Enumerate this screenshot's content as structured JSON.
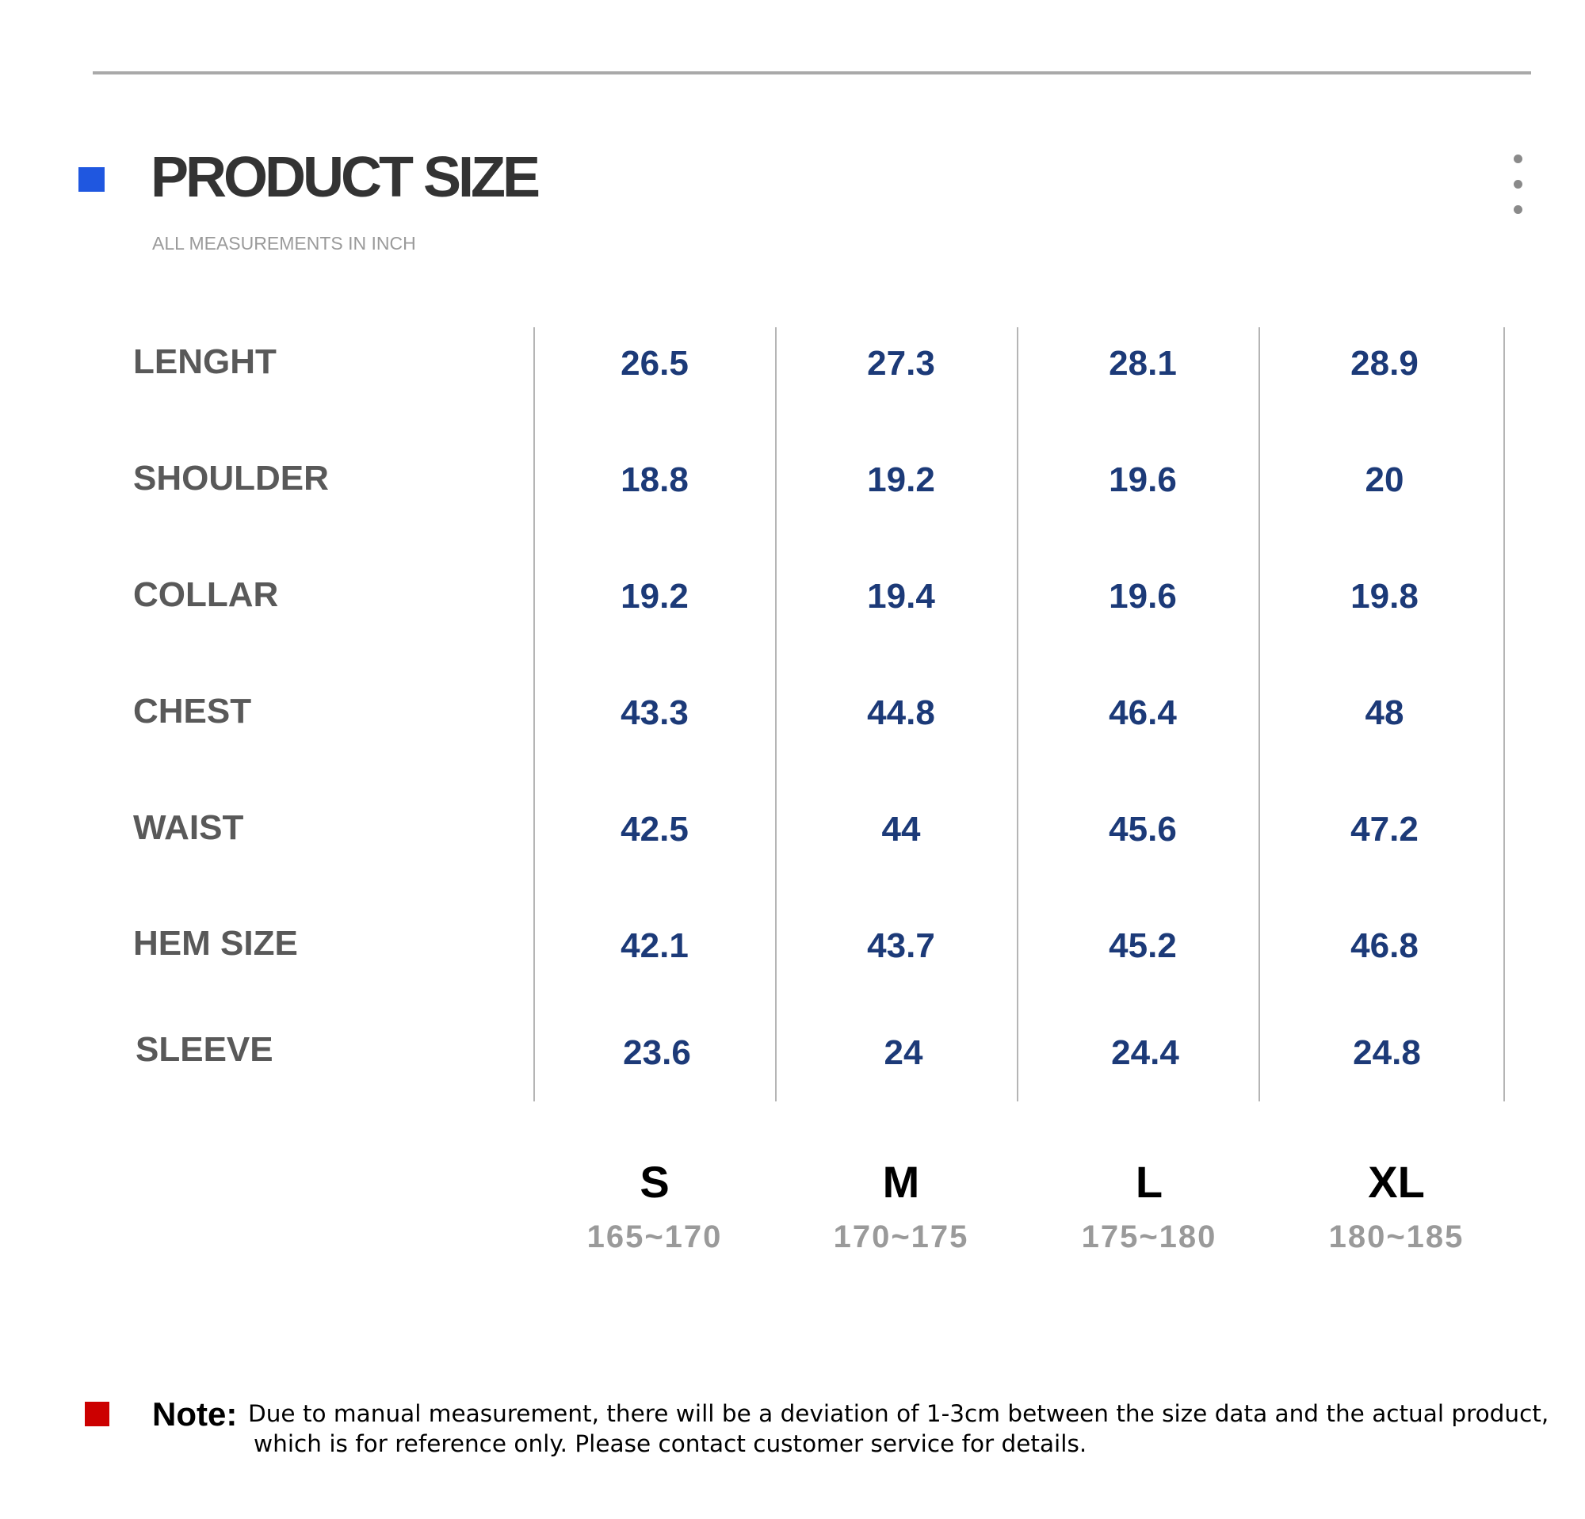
{
  "header": {
    "title": "PRODUCT SIZE",
    "subtitle": "ALL MEASUREMENTS IN INCH",
    "accent_color": "#1f57e0",
    "menu_icon": "kebab-menu-icon"
  },
  "table": {
    "rows": [
      {
        "label": "LENGHT",
        "values": [
          "26.5",
          "27.3",
          "28.1",
          "28.9"
        ]
      },
      {
        "label": "SHOULDER",
        "values": [
          "18.8",
          "19.2",
          "19.6",
          "20"
        ]
      },
      {
        "label": "COLLAR",
        "values": [
          "19.2",
          "19.4",
          "19.6",
          "19.8"
        ]
      },
      {
        "label": "CHEST",
        "values": [
          "43.3",
          "44.8",
          "46.4",
          "48"
        ]
      },
      {
        "label": "WAIST",
        "values": [
          "42.5",
          "44",
          "45.6",
          "47.2"
        ]
      },
      {
        "label": "HEM SIZE",
        "values": [
          "42.1",
          "43.7",
          "45.2",
          "46.8"
        ]
      },
      {
        "label": "SLEEVE",
        "values": [
          "23.6",
          "24",
          "24.4",
          "24.8"
        ]
      }
    ],
    "sizes": [
      {
        "name": "S",
        "range": "165~170"
      },
      {
        "name": "M",
        "range": "170~175"
      },
      {
        "name": "L",
        "range": "175~180"
      },
      {
        "name": "XL",
        "range": "180~185"
      }
    ],
    "value_color": "#1c3a78",
    "label_color": "#595959"
  },
  "note": {
    "label": "Note:",
    "line1": "Due to manual measurement, there will be a deviation of 1-3cm between the size data and the actual product,",
    "line2": "which is for reference only. Please contact customer service for details.",
    "marker_color": "#cc0000"
  }
}
